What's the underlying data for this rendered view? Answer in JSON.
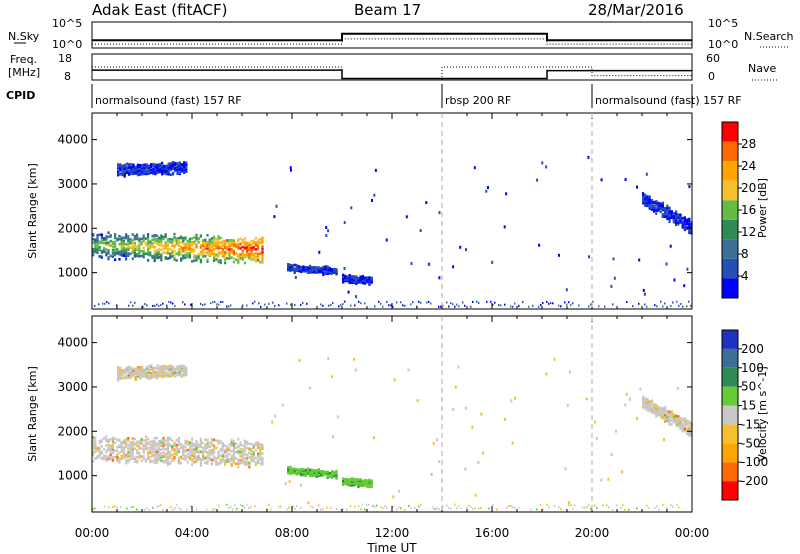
{
  "header": {
    "title": "Adak East (fitACF)",
    "beam": "Beam 17",
    "date": "28/Mar/2016"
  },
  "colors": {
    "scale": [
      "#0000ff",
      "#2450b4",
      "#3c6e96",
      "#2e8b57",
      "#66bb44",
      "#c8c8c8",
      "#f5c030",
      "#ffa500",
      "#ff6a00",
      "#ff0000"
    ],
    "grey": "#c0c0c0",
    "slow_purple": "#8040c0"
  },
  "chart_data": [
    {
      "type": "line",
      "panel": "sky-noise",
      "left_label": "N.Sky",
      "right_label": "N.Search",
      "left_ticks": [
        "10^5",
        "10^0"
      ],
      "right_ticks": [
        "10^5",
        "10^0"
      ],
      "xlim": [
        0,
        24
      ],
      "series": [
        {
          "style": "solid",
          "x": [
            0,
            10,
            10,
            18.2,
            18.2,
            24
          ],
          "y": [
            0.3,
            0.3,
            0.55,
            0.55,
            0.3,
            0.3
          ]
        },
        {
          "style": "dotted",
          "x": [
            0,
            10,
            10,
            18.2,
            18.2,
            24
          ],
          "y": [
            0.15,
            0.15,
            0.35,
            0.35,
            0.15,
            0.15
          ]
        }
      ]
    },
    {
      "type": "line",
      "panel": "frequency",
      "left_label_top": "Freq.",
      "left_label_bottom": "[MHz]",
      "right_label": "Nave",
      "left_ticks": [
        "18",
        "8"
      ],
      "right_ticks": [
        "60",
        "0"
      ],
      "xlim": [
        0,
        24
      ],
      "series": [
        {
          "style": "solid",
          "x": [
            0,
            1.0,
            1.0,
            10.0,
            10.0,
            18.2,
            18.2,
            24
          ],
          "y": [
            11.8,
            11.8,
            11.8,
            11.8,
            8.6,
            8.6,
            11.6,
            11.6
          ]
        },
        {
          "style": "dotted",
          "x": [
            0,
            10.0,
            10.0,
            14.0,
            14.0,
            18.2,
            18.2,
            20.0,
            20.0,
            24
          ],
          "y": [
            30,
            30,
            0,
            0,
            30,
            30,
            30,
            30,
            10,
            10
          ]
        }
      ]
    },
    {
      "type": "table",
      "panel": "cpid",
      "label": "CPID",
      "segments": [
        {
          "start": 0,
          "end": 14,
          "text": "normalsound (fast) 157 RF"
        },
        {
          "start": 14,
          "end": 20,
          "text": "rbsp 200 RF"
        },
        {
          "start": 20,
          "end": 24,
          "text": "normalsound (fast) 157 RF"
        }
      ]
    },
    {
      "type": "heatmap",
      "panel": "power",
      "ylabel": "Slant Range [km]",
      "yticks": [
        1000,
        2000,
        3000,
        4000
      ],
      "ylim": [
        180,
        4600
      ],
      "xlim": [
        0,
        24
      ],
      "colorbar": {
        "label": "Power [dB]",
        "ticks": [
          "28",
          "24",
          "20",
          "16",
          "12",
          "8",
          "4"
        ],
        "range": [
          0,
          32
        ]
      },
      "regions": [
        {
          "x0": 0.0,
          "x1": 6.8,
          "y0c": 1650,
          "y1c": 1550,
          "th": 550,
          "intensity": "ramp"
        },
        {
          "x0": 1.0,
          "x1": 3.8,
          "y0c": 3350,
          "y1c": 3400,
          "th": 250,
          "intensity": "low"
        },
        {
          "x0": 7.8,
          "x1": 9.8,
          "y0c": 1150,
          "y1c": 1050,
          "th": 150,
          "intensity": "low"
        },
        {
          "x0": 10.0,
          "x1": 11.2,
          "y0c": 900,
          "y1c": 850,
          "th": 150,
          "intensity": "low"
        },
        {
          "x0": 22.0,
          "x1": 24.0,
          "y0c": 2700,
          "y1c": 2050,
          "th": 300,
          "intensity": "low"
        }
      ]
    },
    {
      "type": "heatmap",
      "panel": "velocity",
      "ylabel": "Slant Range [km]",
      "yticks": [
        1000,
        2000,
        3000,
        4000
      ],
      "ylim": [
        180,
        4600
      ],
      "xlim": [
        0,
        24
      ],
      "xticks": [
        "00:00",
        "04:00",
        "08:00",
        "12:00",
        "16:00",
        "20:00",
        "00:00"
      ],
      "xlabel": "Time UT",
      "colorbar": {
        "label": "Velocity [m s^-1]",
        "ticks": [
          "200",
          "100",
          "50",
          "15",
          "-15",
          "-50",
          "-100",
          "-200"
        ]
      },
      "regions": [
        {
          "x0": 0.0,
          "x1": 6.8,
          "y0c": 1650,
          "y1c": 1550,
          "th": 550,
          "intensity": "grey"
        },
        {
          "x0": 1.0,
          "x1": 3.8,
          "y0c": 3350,
          "y1c": 3400,
          "th": 250,
          "intensity": "grey"
        },
        {
          "x0": 7.8,
          "x1": 9.8,
          "y0c": 1150,
          "y1c": 1050,
          "th": 150,
          "intensity": "green"
        },
        {
          "x0": 10.0,
          "x1": 11.2,
          "y0c": 900,
          "y1c": 850,
          "th": 150,
          "intensity": "green"
        },
        {
          "x0": 22.0,
          "x1": 24.0,
          "y0c": 2700,
          "y1c": 2050,
          "th": 300,
          "intensity": "grey"
        }
      ]
    }
  ]
}
